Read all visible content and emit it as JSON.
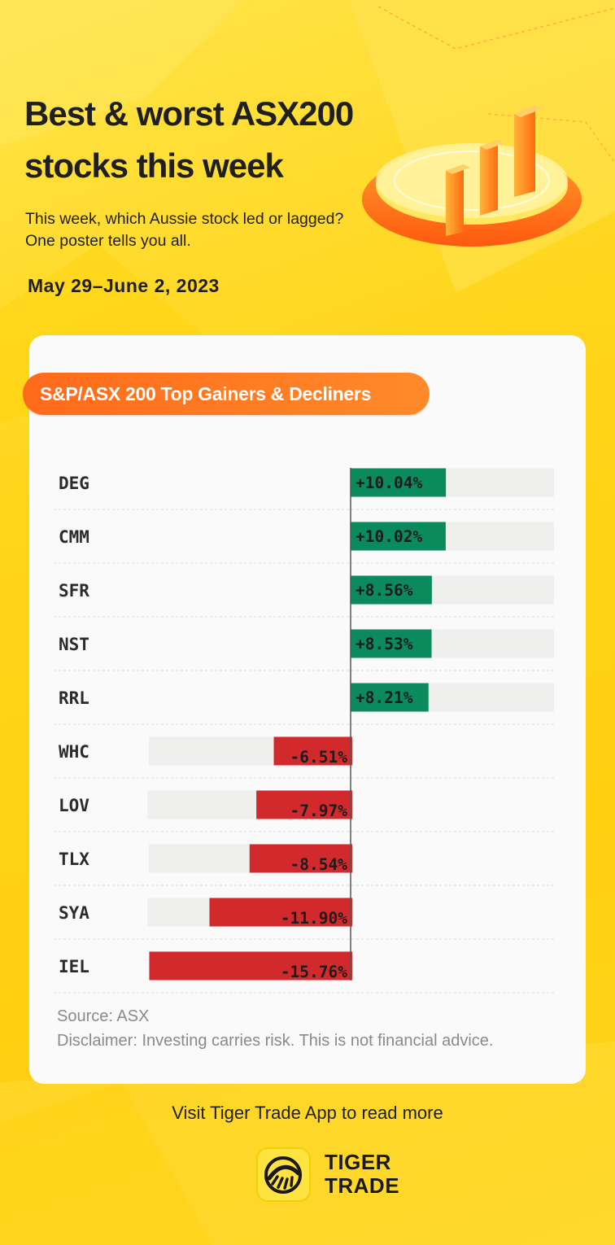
{
  "header": {
    "title": "Best & worst ASX200 stocks this week",
    "subtitle": "This week, which Aussie stock led or lagged? One poster tells you all.",
    "date_range": "May 29–June 2, 2023"
  },
  "colors": {
    "gain": "#0b8a5e",
    "loss": "#d2292c",
    "track": "#efefee",
    "accent": "#ff7a22"
  },
  "chart_data": {
    "type": "bar",
    "orientation": "horizontal",
    "title": "S&P/ASX 200 Top Gainers & Decliners",
    "unit": "%",
    "categories": [
      "DEG",
      "CMM",
      "SFR",
      "NST",
      "RRL",
      "WHC",
      "LOV",
      "TLX",
      "SYA",
      "IEL"
    ],
    "values": [
      10.04,
      10.02,
      8.56,
      8.53,
      8.21,
      -6.51,
      -7.97,
      -8.54,
      -11.9,
      -15.76
    ],
    "labels": [
      "+10.04%",
      "+10.02%",
      "+8.56%",
      "+8.53%",
      "+8.21%",
      "-6.51%",
      "-7.97%",
      "-8.54%",
      "-11.90%",
      "-15.76%"
    ],
    "xlim_positive": [
      0,
      15
    ],
    "xlim_negative": [
      -15.76,
      0
    ],
    "grid": false
  },
  "footer": {
    "source": "Source: ASX",
    "disclaimer": "Disclaimer: Investing carries risk. This is not financial advice.",
    "visit": "Visit Tiger Trade App to read more",
    "brand_line1": "TIGER",
    "brand_line2": "TRADE"
  },
  "icons": {
    "hero": "bar-chart-podium-icon",
    "logo": "tiger-claw-logo-icon"
  }
}
